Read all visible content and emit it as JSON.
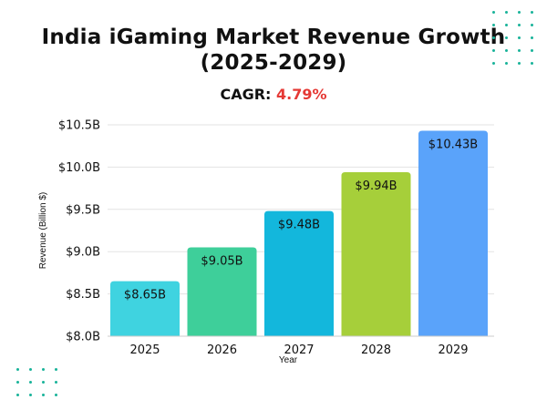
{
  "header": {
    "title_line1": "India iGaming Market Revenue Growth",
    "title_line2": "(2025-2029)",
    "cagr_label": "CAGR:",
    "cagr_value": "4.79%",
    "cagr_color": "#e53935"
  },
  "chart_data": {
    "type": "bar",
    "categories": [
      "2025",
      "2026",
      "2027",
      "2028",
      "2029"
    ],
    "values": [
      8.65,
      9.05,
      9.48,
      9.94,
      10.43
    ],
    "data_labels": [
      "$8.65B",
      "$9.05B",
      "$9.48B",
      "$9.94B",
      "$10.43B"
    ],
    "colors": [
      "#3fd3e0",
      "#3ecf9a",
      "#13b7dc",
      "#a6cf3a",
      "#5aa3fa"
    ],
    "title": "India iGaming Market Revenue Growth (2025-2029)",
    "xlabel": "Year",
    "ylabel": "Revenue (Billion $)",
    "ylim": [
      8.0,
      10.5
    ],
    "yticks": [
      8.0,
      8.5,
      9.0,
      9.5,
      10.0,
      10.5
    ],
    "ytick_labels": [
      "$8.0B",
      "$8.5B",
      "$9.0B",
      "$9.5B",
      "$10.0B",
      "$10.5B"
    ],
    "grid": true,
    "legend": "none"
  }
}
